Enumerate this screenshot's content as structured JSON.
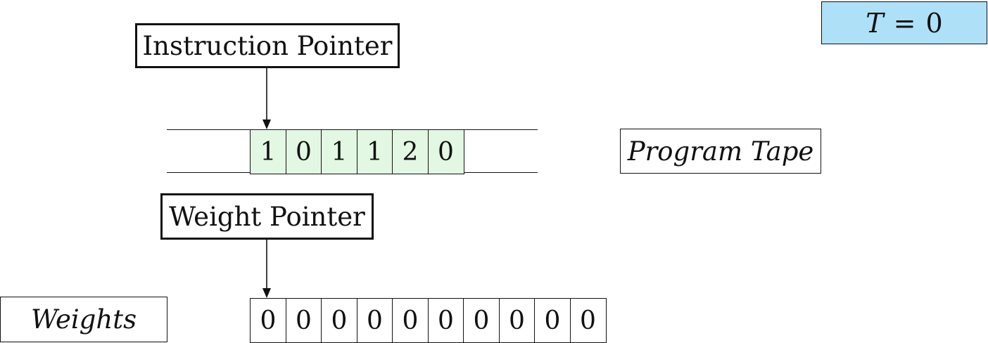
{
  "timer": {
    "variable": "T",
    "operator": "=",
    "value": "0"
  },
  "instruction_pointer": {
    "label": "Instruction Pointer"
  },
  "weight_pointer": {
    "label": "Weight Pointer"
  },
  "program_tape": {
    "label": "Program Tape",
    "cells": [
      "1",
      "0",
      "1",
      "1",
      "2",
      "0"
    ]
  },
  "weights": {
    "label": "Weights",
    "cells": [
      "0",
      "0",
      "0",
      "0",
      "0",
      "0",
      "0",
      "0",
      "0",
      "0"
    ]
  },
  "colors": {
    "timer_fill": "#aee0f8",
    "tape_cell_fill": "#e3f8e3"
  }
}
